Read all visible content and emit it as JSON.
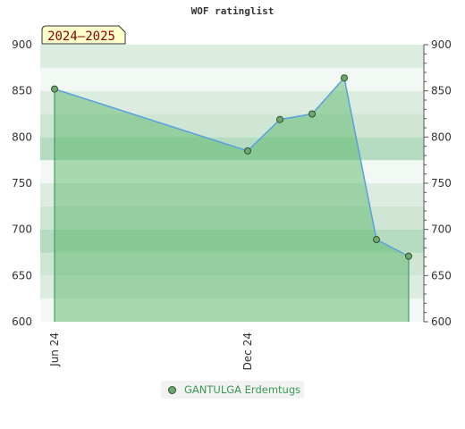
{
  "chart_data": {
    "type": "area",
    "title": "WOF ratinglist",
    "season_label": "2024–2025",
    "ylim": [
      600,
      900
    ],
    "yticks": [
      600,
      650,
      700,
      750,
      800,
      850,
      900
    ],
    "xticks": [
      {
        "label": "Jun 24",
        "index": 0
      },
      {
        "label": "Dec 24",
        "index": 6
      }
    ],
    "series": [
      {
        "name": "GANTULGA Erdemtugs",
        "x_index": [
          0,
          6,
          7,
          8,
          9,
          10,
          11
        ],
        "values": [
          852,
          785,
          819,
          825,
          864,
          689,
          671
        ]
      }
    ],
    "grid": true,
    "legend_position": "bottom-center",
    "colors": {
      "line": "#5aa0e0",
      "fill": "#5cb86a",
      "marker": "#6fa86f",
      "legend_text": "#3a9a55"
    }
  }
}
